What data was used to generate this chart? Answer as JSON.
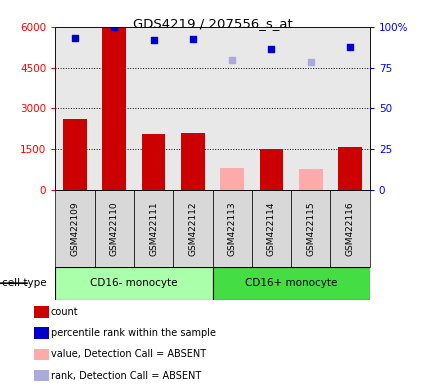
{
  "title": "GDS4219 / 207556_s_at",
  "samples": [
    "GSM422109",
    "GSM422110",
    "GSM422111",
    "GSM422112",
    "GSM422113",
    "GSM422114",
    "GSM422115",
    "GSM422116"
  ],
  "bar_values": [
    2600,
    6000,
    2050,
    2100,
    null,
    1500,
    null,
    1600
  ],
  "bar_absent_values": [
    null,
    null,
    null,
    null,
    800,
    null,
    780,
    null
  ],
  "scatter_present": [
    5600,
    6000,
    5500,
    5550,
    null,
    5200,
    null,
    5250
  ],
  "scatter_absent": [
    null,
    null,
    null,
    null,
    4800,
    null,
    4700,
    null
  ],
  "scatter_color_present": "#0000cc",
  "scatter_color_absent": "#aaaadd",
  "ylim": [
    0,
    6000
  ],
  "yticks": [
    0,
    1500,
    3000,
    4500,
    6000
  ],
  "ytick_labels": [
    "0",
    "1500",
    "3000",
    "4500",
    "6000"
  ],
  "y2ticks": [
    0,
    25,
    50,
    75,
    100
  ],
  "y2tick_labels": [
    "0",
    "25",
    "50",
    "75",
    "100%"
  ],
  "cell_types": [
    {
      "label": "CD16- monocyte",
      "start": 0,
      "end": 3,
      "color": "#aaffaa"
    },
    {
      "label": "CD16+ monocyte",
      "start": 4,
      "end": 7,
      "color": "#44dd44"
    }
  ],
  "cell_type_label": "cell type",
  "legend_labels": [
    "count",
    "percentile rank within the sample",
    "value, Detection Call = ABSENT",
    "rank, Detection Call = ABSENT"
  ],
  "legend_colors": [
    "#cc0000",
    "#0000cc",
    "#ffaaaa",
    "#aaaadd"
  ],
  "bar_color_present": "#cc0000",
  "bar_color_absent": "#ffaaaa",
  "bg_color": "#d8d8d8",
  "plot_bg": "#e8e8e8"
}
